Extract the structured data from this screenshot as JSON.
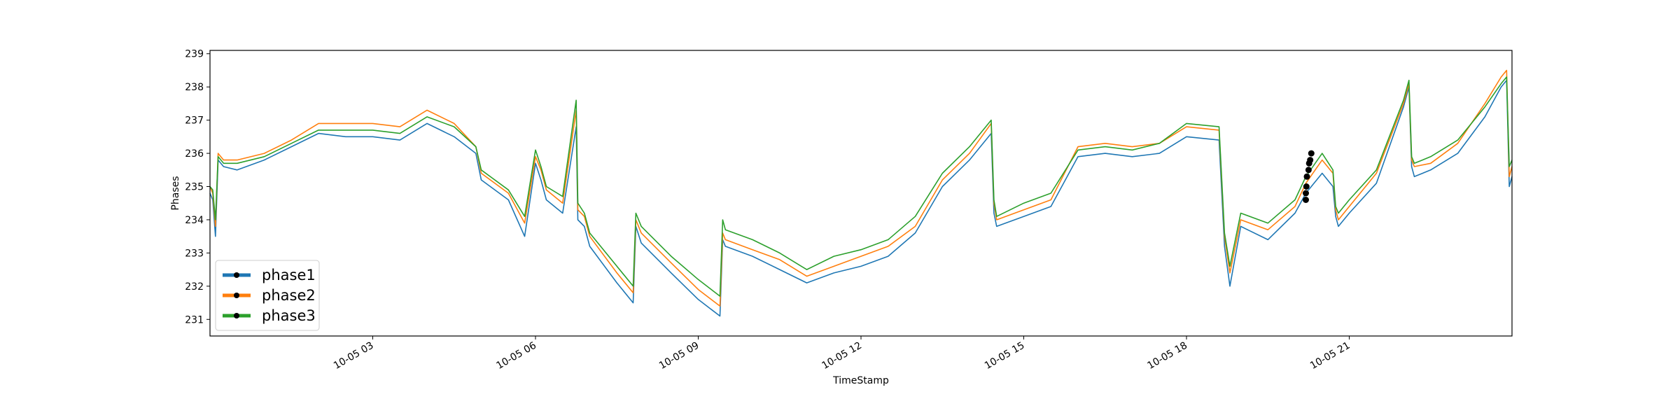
{
  "chart_data": {
    "type": "line",
    "title": "",
    "xlabel": "TimeStamp",
    "ylabel": "Phases",
    "xlim_hours": [
      0.0,
      24.0
    ],
    "ylim": [
      230.5,
      239.1
    ],
    "x_ticks": [
      {
        "hour": 3,
        "label": "10-05 03"
      },
      {
        "hour": 6,
        "label": "10-05 06"
      },
      {
        "hour": 9,
        "label": "10-05 09"
      },
      {
        "hour": 12,
        "label": "10-05 12"
      },
      {
        "hour": 15,
        "label": "10-05 15"
      },
      {
        "hour": 18,
        "label": "10-05 18"
      },
      {
        "hour": 21,
        "label": "10-05 21"
      }
    ],
    "y_ticks": [
      231,
      232,
      233,
      234,
      235,
      236,
      237,
      238,
      239
    ],
    "grid": false,
    "legend_position": "lower-left",
    "x_hours": [
      0.0,
      0.05,
      0.1,
      0.15,
      0.25,
      0.5,
      1.0,
      1.5,
      2.0,
      2.5,
      3.0,
      3.5,
      4.0,
      4.5,
      4.9,
      5.0,
      5.5,
      5.8,
      6.0,
      6.1,
      6.2,
      6.5,
      6.75,
      6.78,
      6.9,
      7.0,
      7.5,
      7.8,
      7.85,
      7.95,
      8.5,
      9.0,
      9.4,
      9.45,
      9.5,
      10.0,
      10.5,
      11.0,
      11.5,
      12.0,
      12.5,
      13.0,
      13.5,
      14.0,
      14.4,
      14.45,
      14.5,
      15.0,
      15.5,
      16.0,
      16.5,
      17.0,
      17.5,
      18.0,
      18.6,
      18.7,
      18.8,
      19.0,
      19.5,
      20.0,
      20.2,
      20.5,
      20.7,
      20.75,
      20.8,
      21.0,
      21.5,
      22.0,
      22.1,
      22.15,
      22.2,
      22.5,
      23.0,
      23.5,
      23.8,
      23.9,
      23.95,
      24.0
    ],
    "series": [
      {
        "name": "phase1",
        "color": "#1f77b4",
        "values": [
          234.8,
          234.6,
          233.5,
          235.8,
          235.6,
          235.5,
          235.8,
          236.2,
          236.6,
          236.5,
          236.5,
          236.4,
          236.9,
          236.5,
          236.0,
          235.2,
          234.6,
          233.5,
          235.7,
          235.2,
          234.6,
          234.2,
          236.8,
          234.0,
          233.8,
          233.2,
          232.1,
          231.5,
          233.8,
          233.3,
          232.4,
          231.6,
          231.1,
          233.4,
          233.2,
          232.9,
          232.5,
          232.1,
          232.4,
          232.6,
          232.9,
          233.6,
          235.0,
          235.8,
          236.6,
          234.2,
          233.8,
          234.1,
          234.4,
          235.9,
          236.0,
          235.9,
          236.0,
          236.5,
          236.4,
          233.2,
          232.0,
          233.8,
          233.4,
          234.2,
          234.8,
          235.4,
          235.0,
          234.1,
          233.8,
          234.2,
          235.1,
          237.4,
          238.0,
          235.6,
          235.3,
          235.5,
          236.0,
          237.1,
          238.0,
          238.2,
          235.0,
          235.3
        ]
      },
      {
        "name": "phase2",
        "color": "#ff7f0e",
        "values": [
          235.0,
          234.8,
          233.8,
          236.0,
          235.8,
          235.8,
          236.0,
          236.4,
          236.9,
          236.9,
          236.9,
          236.8,
          237.3,
          236.9,
          236.2,
          235.4,
          234.8,
          233.9,
          235.9,
          235.5,
          234.9,
          234.5,
          237.3,
          234.3,
          234.1,
          233.5,
          232.4,
          231.8,
          234.0,
          233.6,
          232.7,
          231.9,
          231.4,
          233.6,
          233.4,
          233.1,
          232.8,
          232.3,
          232.6,
          232.9,
          233.2,
          233.8,
          235.2,
          236.0,
          236.9,
          234.5,
          234.0,
          234.3,
          234.6,
          236.2,
          236.3,
          236.2,
          236.3,
          236.8,
          236.7,
          233.5,
          232.4,
          234.0,
          233.7,
          234.4,
          235.1,
          235.8,
          235.4,
          234.3,
          234.0,
          234.4,
          235.4,
          237.5,
          238.1,
          235.8,
          235.6,
          235.7,
          236.3,
          237.5,
          238.3,
          238.5,
          235.3,
          235.6
        ]
      },
      {
        "name": "phase3",
        "color": "#2ca02c",
        "values": [
          235.0,
          234.9,
          234.0,
          235.9,
          235.7,
          235.7,
          235.9,
          236.3,
          236.7,
          236.7,
          236.7,
          236.6,
          237.1,
          236.8,
          236.2,
          235.5,
          234.9,
          234.1,
          236.1,
          235.6,
          235.0,
          234.7,
          237.6,
          234.5,
          234.2,
          233.6,
          232.6,
          232.0,
          234.2,
          233.8,
          232.9,
          232.2,
          231.7,
          234.0,
          233.7,
          233.4,
          233.0,
          232.5,
          232.9,
          233.1,
          233.4,
          234.1,
          235.4,
          236.2,
          237.0,
          234.6,
          234.1,
          234.5,
          234.8,
          236.1,
          236.2,
          236.1,
          236.3,
          236.9,
          236.8,
          233.6,
          232.6,
          234.2,
          233.9,
          234.6,
          235.3,
          236.0,
          235.5,
          234.4,
          234.2,
          234.6,
          235.5,
          237.6,
          238.2,
          235.9,
          235.7,
          235.9,
          236.4,
          237.4,
          238.1,
          238.3,
          235.6,
          235.8
        ]
      }
    ],
    "markers": {
      "x_hours": [
        20.2,
        20.2,
        20.21,
        20.22,
        20.25,
        20.26,
        20.28,
        20.3
      ],
      "y": [
        234.6,
        234.8,
        235.0,
        235.3,
        235.5,
        235.7,
        235.8,
        236.0
      ]
    }
  }
}
